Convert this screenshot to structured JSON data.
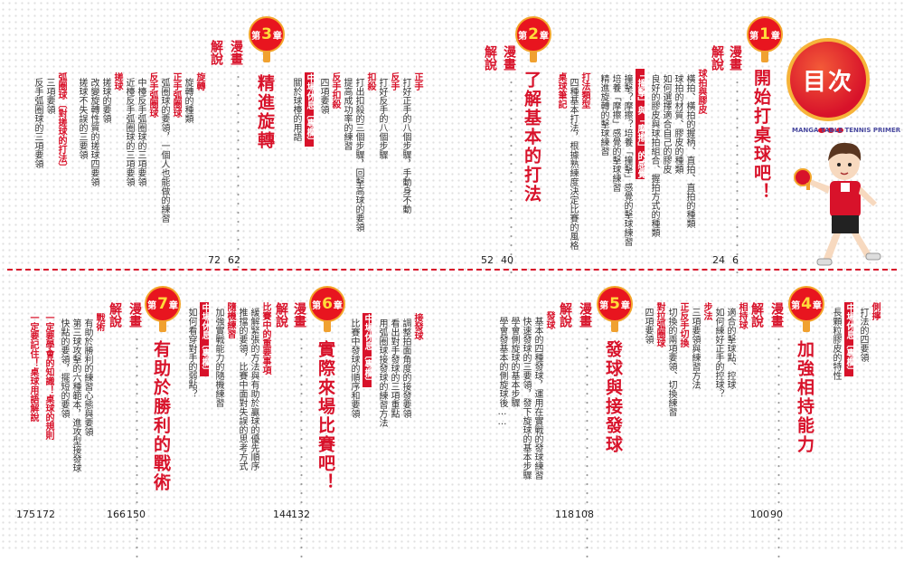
{
  "toc": {
    "title": "目次",
    "subtitle": "MANGA TABLE TENNIS PRIMER",
    "manga_label": "漫畫",
    "expl_label": "解說",
    "chapters": [
      {
        "num": "1",
        "chapter_prefix": "第",
        "chapter_suffix": "章",
        "title": "開始打桌球吧！",
        "manga_page": "6",
        "expl_page": "24",
        "sections": [
          {
            "header": "球拍與膠皮",
            "items": [
              "橫拍、橫拍的握柄、直拍、直拍的種類",
              "球拍的材質、膠皮的種類",
              "如何選擇適合自己的膠皮",
              "良好的膠皮與球拍組合、握拍方式的種類"
            ]
          },
          {
            "header": "撞擊」與「摩擦」的感覺",
            "header_prefix": "「",
            "items": [
              "撞擊？摩擦？培養「撞擊」感覺的擊球練習",
              "培養「摩擦」感覺的擊球練習",
              "精進旋轉的擊球練習"
            ]
          }
        ]
      },
      {
        "num": "2",
        "chapter_prefix": "第",
        "chapter_suffix": "章",
        "title": "了解基本的打法",
        "manga_page": "40",
        "expl_page": "52",
        "sections": [
          {
            "header": "打法類型",
            "items": [
              "四種基本打法，根據熟練度決定比賽的風格"
            ]
          },
          {
            "header": "桌球筆記",
            "items": []
          }
        ]
      },
      {
        "num": "3",
        "chapter_prefix": "第",
        "chapter_suffix": "章",
        "title": "精進旋轉",
        "manga_page": "62",
        "expl_page": "72",
        "sections": [
          {
            "header": "正手",
            "items": [
              "打好正手的八個步驟，手動身不動"
            ]
          },
          {
            "header": "反手",
            "items": [
              "打好反手的八個步驟"
            ]
          },
          {
            "header": "扣殺",
            "items": [
              "打出扣殺的三個步驟，回擊高球的要領",
              "提高成功率的練習"
            ]
          },
          {
            "header": "反手扣殺",
            "items": [
              "四項要領"
            ]
          },
          {
            "header": "中場休息〔專欄〕",
            "items": [
              "關於球檯的用語"
            ]
          },
          {
            "header": "旋轉",
            "items": [
              "旋轉的種類"
            ]
          },
          {
            "header": "正手弧圈球",
            "items": [
              "弧圈球的要領，一個人也能做的練習"
            ]
          },
          {
            "header": "反手弧圈球",
            "items": [
              "中檯反手弧圈球的三項要領",
              "近檯反手弧圈球的三項要領"
            ]
          },
          {
            "header": "搓球",
            "items": [
              "搓球的要領",
              "改變旋轉性質的搓球四要領",
              "搓球不失誤的三要領"
            ]
          },
          {
            "header": "弧圈球〔對搓球的打法〕",
            "items": [
              "三項要領",
              "反手弧圈球的三項要領"
            ]
          }
        ]
      },
      {
        "num": "4",
        "chapter_prefix": "第",
        "chapter_suffix": "章",
        "title": "加強相持能力",
        "manga_page": "90",
        "expl_page": "100",
        "sections": [
          {
            "header": "側擰",
            "items": [
              "打法的四要領"
            ]
          },
          {
            "header": "中場休息〔專欄〕",
            "items": [
              "長顆粒膠皮的特性"
            ]
          },
          {
            "header": "相持球",
            "items": [
              "適合的擊球點、控球",
              "如何練好正手的控球？"
            ]
          },
          {
            "header": "步法",
            "items": [
              "三項要領與練習方法"
            ]
          },
          {
            "header": "正反手切換",
            "items": [
              "切換的兩項要領、切換練習"
            ]
          },
          {
            "header": "對拉弧圈球",
            "items": [
              "四項要領"
            ]
          }
        ]
      },
      {
        "num": "5",
        "chapter_prefix": "第",
        "chapter_suffix": "章",
        "title": "發球與接發球",
        "manga_page": "108",
        "expl_page": "118",
        "sections": [
          {
            "header": "發球",
            "items": [
              "基本的四種發球，運用在實戰的發球練習",
              "快速發球的三要領，發下旋球的基本步驟",
              "學會側旋球的基本步驟",
              "學會發基本的側旋球後……"
            ]
          }
        ]
      },
      {
        "num": "6",
        "chapter_prefix": "第",
        "chapter_suffix": "章",
        "title": "實際來場比賽吧！",
        "manga_page": "132",
        "expl_page": "144",
        "sections": [
          {
            "header": "接發球",
            "items": [
              "調整拍面角度的接發要領",
              "看出對手發球的三項重點",
              "用弧圈球接發球的練習方法"
            ]
          },
          {
            "header": "中場休息〔專欄〕",
            "items": [
              "比賽中發球的順序和要領"
            ]
          },
          {
            "header": "比賽中的重要事項",
            "items": [
              "緩解緊張的方法與有助於贏球的優先順序",
              "推擋的要領，比賽中面對失誤的思考方式"
            ]
          },
          {
            "header": "隨機練習",
            "items": [
              "加強實戰能力的隨機練習"
            ]
          },
          {
            "header": "中場休息〔專欄〕",
            "items": [
              "如何看穿對手的弱點？"
            ]
          }
        ]
      },
      {
        "num": "7",
        "chapter_prefix": "第",
        "chapter_suffix": "章",
        "title": "有助於勝利的戰術",
        "manga_page": "150",
        "expl_page": "166",
        "sections": [
          {
            "header": "戰術",
            "items": [
              "有助於勝利的練習心態與要領",
              "第三球攻擊的六種範本，進攻型接發球",
              "快點的要領，擺短的要領"
            ]
          },
          {
            "header": "一定要學會的知識！桌球的規則",
            "items": []
          },
          {
            "header": "一定要記住！桌球用語解說",
            "items": []
          }
        ],
        "tail_pages": [
          "172",
          "175"
        ]
      }
    ]
  }
}
